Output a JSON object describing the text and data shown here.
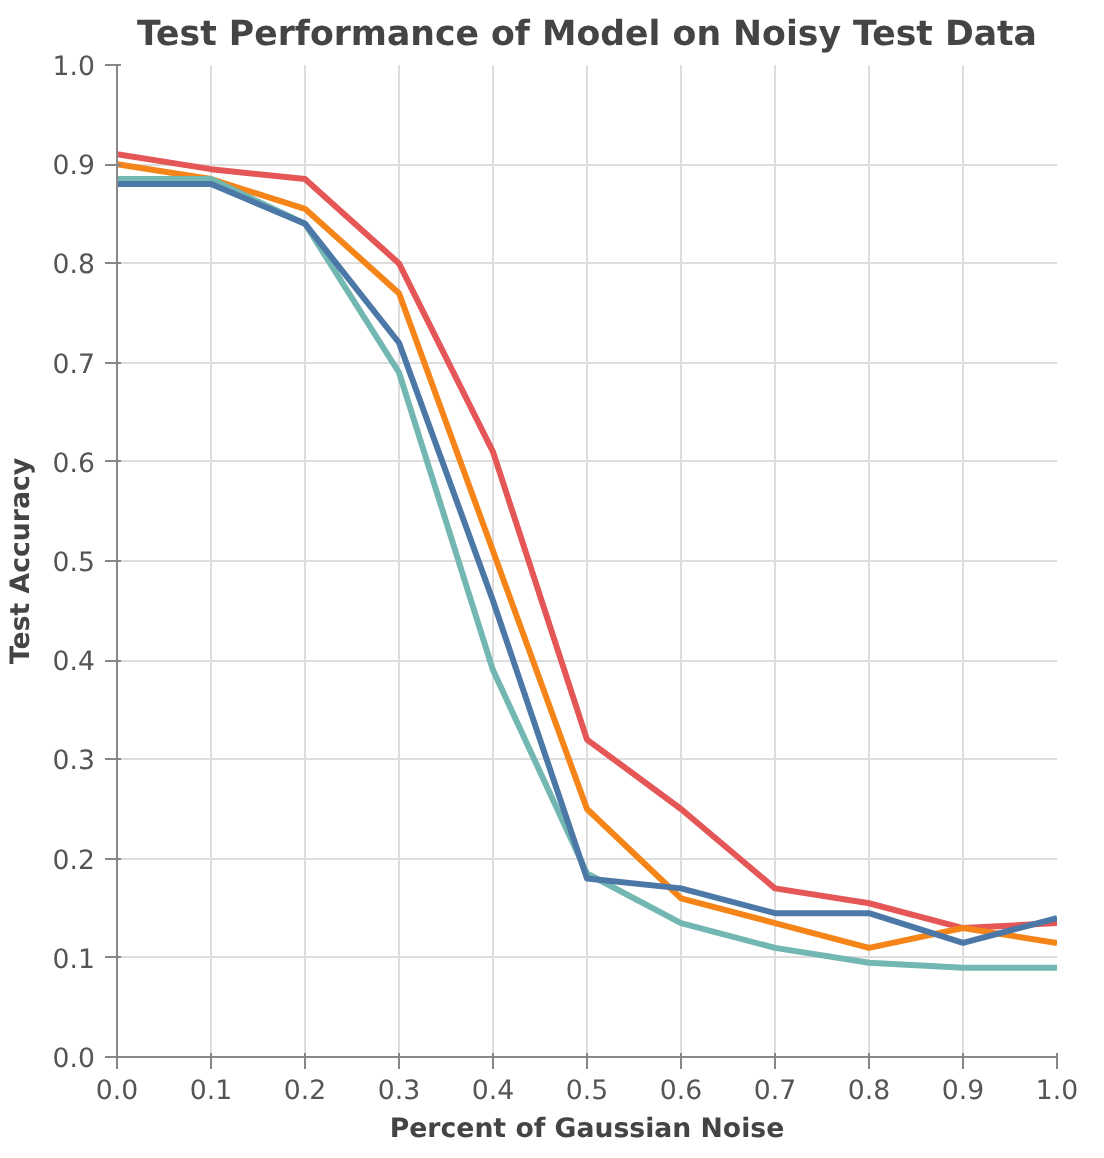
{
  "chart_data": {
    "type": "line",
    "title": "Test Performance of Model on Noisy Test Data",
    "xlabel": "Percent of Gaussian Noise",
    "ylabel": "Test Accuracy",
    "x": [
      0.0,
      0.1,
      0.2,
      0.3,
      0.4,
      0.5,
      0.6,
      0.7,
      0.8,
      0.9,
      1.0
    ],
    "series": [
      {
        "color": "#e45756",
        "values": [
          0.91,
          0.895,
          0.885,
          0.8,
          0.61,
          0.32,
          0.25,
          0.17,
          0.155,
          0.13,
          0.135
        ]
      },
      {
        "color": "#f58518",
        "values": [
          0.9,
          0.885,
          0.855,
          0.77,
          0.51,
          0.25,
          0.16,
          0.135,
          0.11,
          0.13,
          0.115
        ]
      },
      {
        "color": "#72b7b2",
        "values": [
          0.885,
          0.885,
          0.84,
          0.69,
          0.39,
          0.185,
          0.135,
          0.11,
          0.095,
          0.09,
          0.09
        ]
      },
      {
        "color": "#4c78a8",
        "values": [
          0.88,
          0.88,
          0.84,
          0.72,
          0.46,
          0.18,
          0.17,
          0.145,
          0.145,
          0.115,
          0.14
        ]
      }
    ],
    "xlim": [
      0.0,
      1.0
    ],
    "ylim": [
      0.0,
      1.0
    ],
    "xticks": [
      {
        "value": 0.0,
        "label": "0.0"
      },
      {
        "value": 0.1,
        "label": "0.1"
      },
      {
        "value": 0.2,
        "label": "0.2"
      },
      {
        "value": 0.3,
        "label": "0.3"
      },
      {
        "value": 0.4,
        "label": "0.4"
      },
      {
        "value": 0.5,
        "label": "0.5"
      },
      {
        "value": 0.6,
        "label": "0.6"
      },
      {
        "value": 0.7,
        "label": "0.7"
      },
      {
        "value": 0.8,
        "label": "0.8"
      },
      {
        "value": 0.9,
        "label": "0.9"
      },
      {
        "value": 1.0,
        "label": "1.0"
      }
    ],
    "yticks": [
      {
        "value": 0.0,
        "label": "0.0"
      },
      {
        "value": 0.1,
        "label": "0.1"
      },
      {
        "value": 0.2,
        "label": "0.2"
      },
      {
        "value": 0.3,
        "label": "0.3"
      },
      {
        "value": 0.4,
        "label": "0.4"
      },
      {
        "value": 0.5,
        "label": "0.5"
      },
      {
        "value": 0.6,
        "label": "0.6"
      },
      {
        "value": 0.7,
        "label": "0.7"
      },
      {
        "value": 0.8,
        "label": "0.8"
      },
      {
        "value": 0.9,
        "label": "0.9"
      },
      {
        "value": 1.0,
        "label": "1.0"
      }
    ],
    "grid": true,
    "marker": "none",
    "line_style": "solid"
  }
}
